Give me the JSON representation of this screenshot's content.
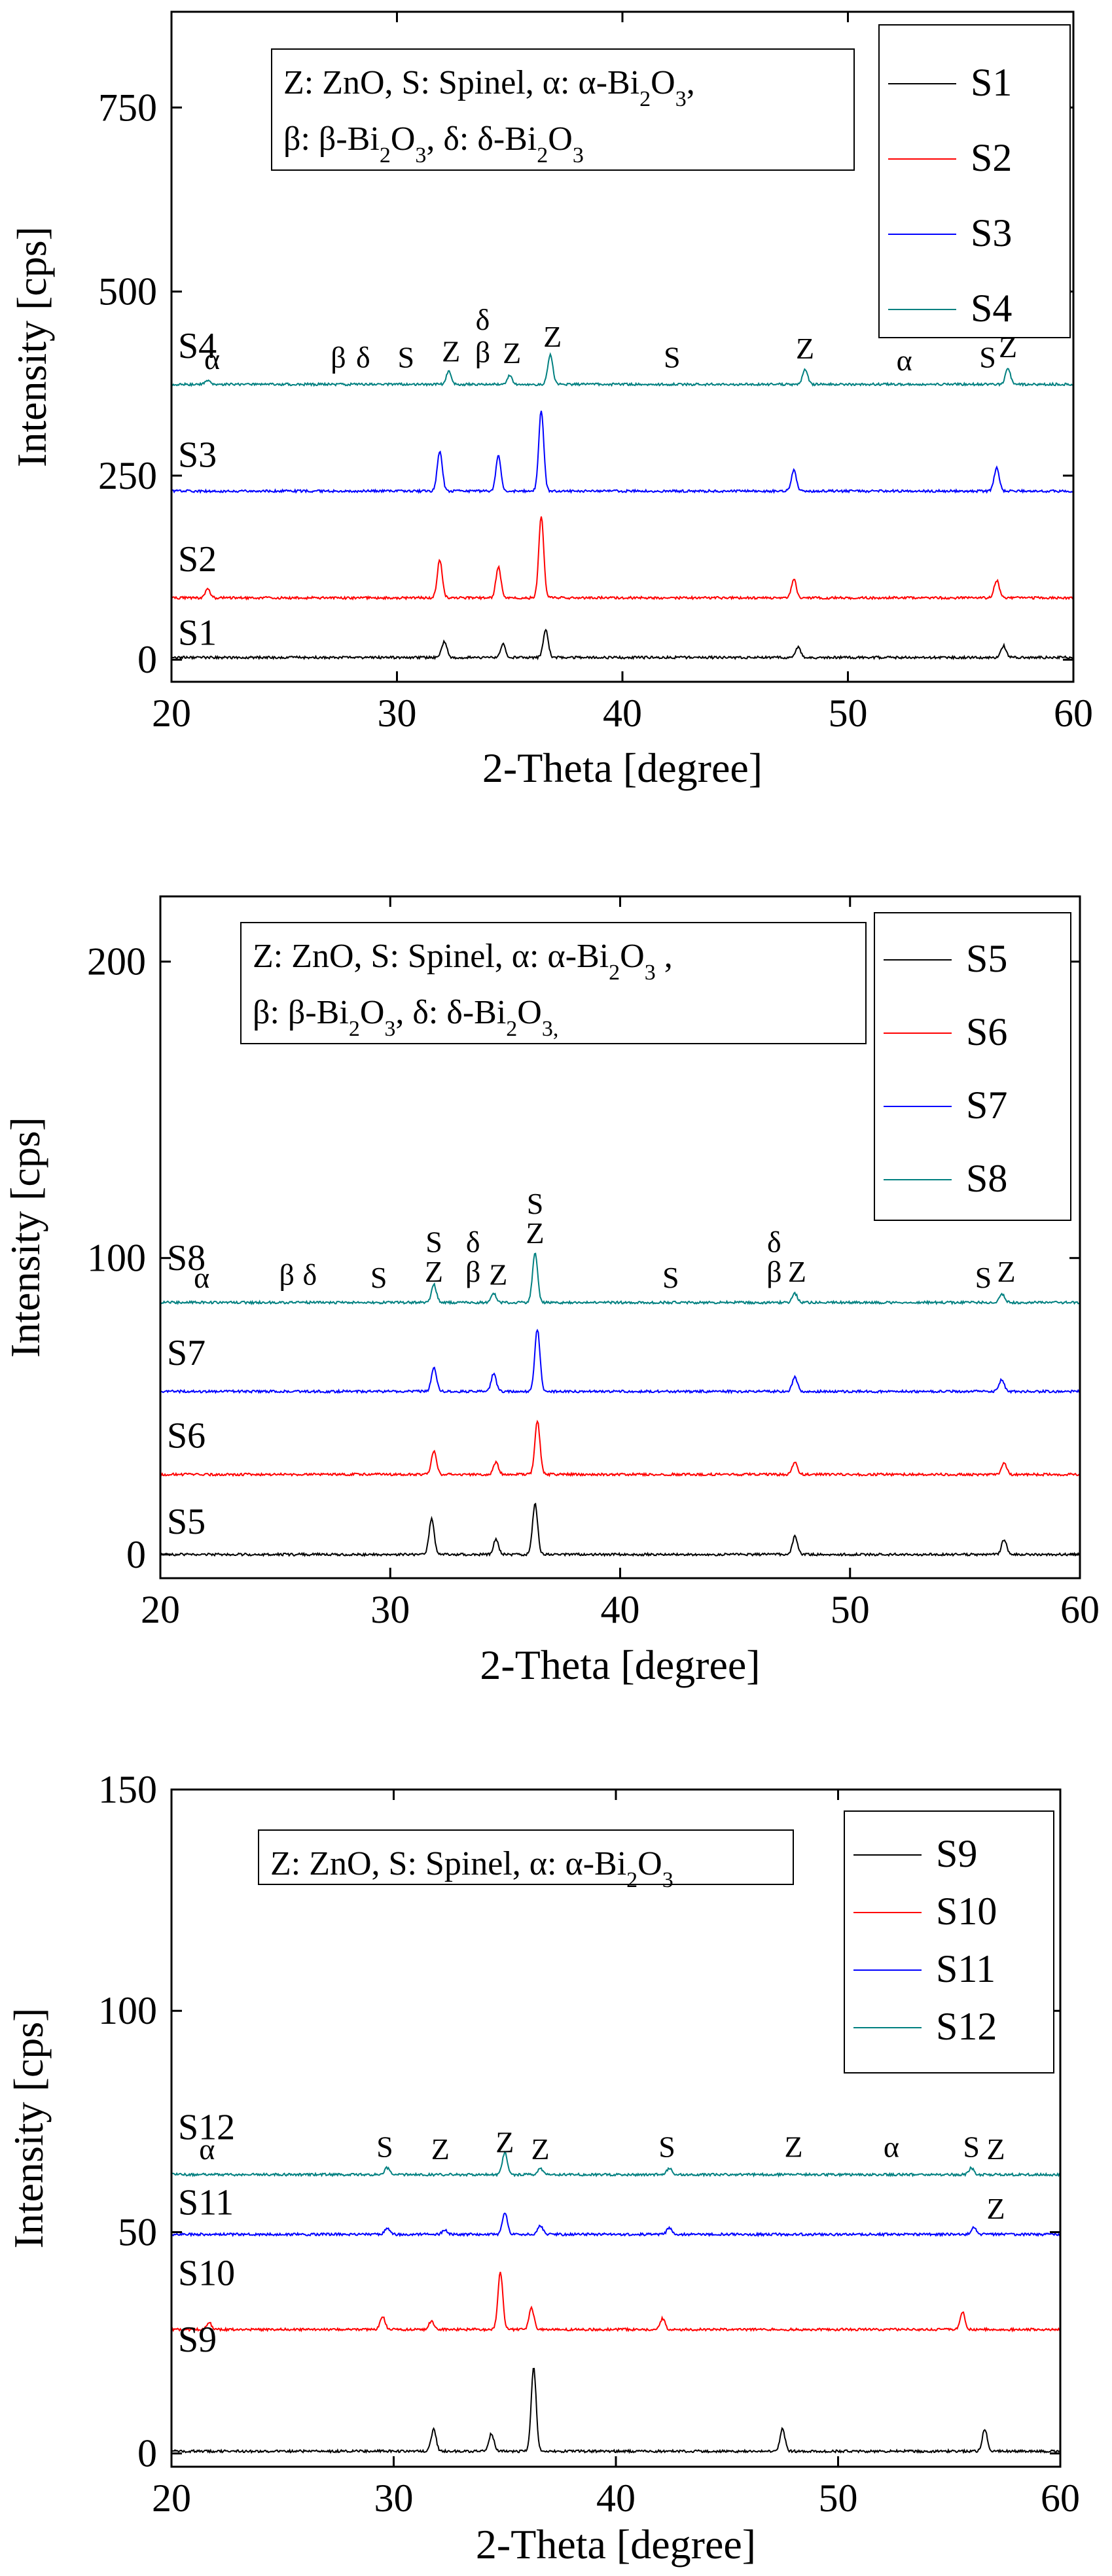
{
  "chart_data": [
    {
      "id": "top",
      "type": "line",
      "xlabel": "2-Theta [degree]",
      "ylabel": "Intensity [cps]",
      "xlim": [
        20,
        60
      ],
      "ylim": [
        -30,
        880
      ],
      "xticks": [
        20,
        30,
        40,
        50,
        60
      ],
      "yticks": [
        0,
        250,
        500,
        750
      ],
      "legend_title_lines": [
        [
          "Z: ZnO, S: Spinel, α: α-Bi",
          "2",
          "O",
          "3",
          ","
        ],
        [
          "β: β-Bi",
          "2",
          "O",
          "3",
          ", δ: δ-Bi",
          "2",
          "O",
          "3",
          ""
        ]
      ],
      "series": [
        {
          "name": "S1",
          "color": "#000000",
          "baseline": 3,
          "peaks": [
            [
              32.1,
              22
            ],
            [
              34.7,
              18
            ],
            [
              36.6,
              38
            ],
            [
              47.8,
              14
            ],
            [
              56.9,
              16
            ]
          ]
        },
        {
          "name": "S2",
          "color": "#ff0000",
          "baseline": 84,
          "peaks": [
            [
              21.6,
              12
            ],
            [
              31.9,
              52
            ],
            [
              34.5,
              42
            ],
            [
              36.4,
              110
            ],
            [
              47.6,
              25
            ],
            [
              56.6,
              24
            ]
          ]
        },
        {
          "name": "S3",
          "color": "#0000ff",
          "baseline": 229,
          "peaks": [
            [
              31.9,
              55
            ],
            [
              34.5,
              48
            ],
            [
              36.4,
              110
            ],
            [
              47.6,
              28
            ],
            [
              56.6,
              32
            ]
          ]
        },
        {
          "name": "S4",
          "color": "#008080",
          "baseline": 374,
          "peaks": [
            [
              21.6,
              6
            ],
            [
              32.3,
              18
            ],
            [
              35.0,
              12
            ],
            [
              36.8,
              40
            ],
            [
              48.1,
              20
            ],
            [
              57.1,
              22
            ]
          ]
        }
      ],
      "series_labels": [
        {
          "text": "S1",
          "y": 20
        },
        {
          "text": "S2",
          "y": 120
        },
        {
          "text": "S3",
          "y": 262
        },
        {
          "text": "S4",
          "y": 410
        }
      ],
      "annotations": [
        {
          "text": "α",
          "x": 21.8,
          "y": 395
        },
        {
          "text": "β",
          "x": 27.4,
          "y": 397
        },
        {
          "text": "δ",
          "x": 28.5,
          "y": 397
        },
        {
          "text": "S",
          "x": 30.4,
          "y": 397
        },
        {
          "text": "Z",
          "x": 32.4,
          "y": 405
        },
        {
          "text": "δ",
          "x": 33.8,
          "y": 448
        },
        {
          "text": "β",
          "x": 33.8,
          "y": 404
        },
        {
          "text": "Z",
          "x": 35.1,
          "y": 403
        },
        {
          "text": "Z",
          "x": 36.9,
          "y": 425
        },
        {
          "text": "S",
          "x": 42.2,
          "y": 397
        },
        {
          "text": "Z",
          "x": 48.1,
          "y": 409
        },
        {
          "text": "α",
          "x": 52.5,
          "y": 393
        },
        {
          "text": "S",
          "x": 56.2,
          "y": 397
        },
        {
          "text": "Z",
          "x": 57.1,
          "y": 411
        }
      ]
    },
    {
      "id": "middle",
      "type": "line",
      "xlabel": "2-Theta [degree]",
      "ylabel": "Intensity [cps]",
      "xlim": [
        20,
        60
      ],
      "ylim": [
        -8,
        222
      ],
      "xticks": [
        20,
        30,
        40,
        50,
        60
      ],
      "yticks": [
        0,
        100,
        200
      ],
      "legend_title_lines": [
        [
          "Z: ZnO, S: Spinel, α: α-Bi",
          "2",
          "O",
          "3",
          " ,"
        ],
        [
          "β: β-Bi",
          "2",
          "O",
          "3",
          ", δ: δ-Bi",
          "2",
          "O",
          "3,",
          ""
        ]
      ],
      "series": [
        {
          "name": "S5",
          "color": "#000000",
          "baseline": 0,
          "peaks": [
            [
              31.8,
              12
            ],
            [
              34.6,
              5
            ],
            [
              36.3,
              17
            ],
            [
              47.6,
              6
            ],
            [
              56.7,
              5
            ]
          ]
        },
        {
          "name": "S6",
          "color": "#ff0000",
          "baseline": 27,
          "peaks": [
            [
              31.9,
              8
            ],
            [
              34.6,
              4
            ],
            [
              36.4,
              18
            ],
            [
              47.6,
              4
            ],
            [
              56.7,
              4
            ]
          ]
        },
        {
          "name": "S7",
          "color": "#0000ff",
          "baseline": 55,
          "peaks": [
            [
              31.9,
              8
            ],
            [
              34.5,
              6
            ],
            [
              36.4,
              21
            ],
            [
              47.6,
              5
            ],
            [
              56.6,
              4
            ]
          ]
        },
        {
          "name": "S8",
          "color": "#008080",
          "baseline": 85,
          "peaks": [
            [
              31.9,
              6
            ],
            [
              34.5,
              3
            ],
            [
              36.3,
              17
            ],
            [
              47.6,
              3
            ],
            [
              56.6,
              3
            ]
          ]
        }
      ],
      "series_labels": [
        {
          "text": "S5",
          "y": 7
        },
        {
          "text": "S6",
          "y": 36
        },
        {
          "text": "S7",
          "y": 64
        },
        {
          "text": "S8",
          "y": 96
        }
      ],
      "annotations": [
        {
          "text": "α",
          "x": 21.8,
          "y": 90
        },
        {
          "text": "β",
          "x": 25.5,
          "y": 91
        },
        {
          "text": "δ",
          "x": 26.5,
          "y": 91
        },
        {
          "text": "S",
          "x": 29.5,
          "y": 90
        },
        {
          "text": "Z",
          "x": 31.9,
          "y": 92
        },
        {
          "text": "S",
          "x": 31.9,
          "y": 102
        },
        {
          "text": "β",
          "x": 33.6,
          "y": 92
        },
        {
          "text": "δ",
          "x": 33.6,
          "y": 102
        },
        {
          "text": "Z",
          "x": 34.7,
          "y": 91
        },
        {
          "text": "Z",
          "x": 36.3,
          "y": 105
        },
        {
          "text": "S",
          "x": 36.3,
          "y": 115
        },
        {
          "text": "S",
          "x": 42.2,
          "y": 90
        },
        {
          "text": "β",
          "x": 46.7,
          "y": 92
        },
        {
          "text": "δ",
          "x": 46.7,
          "y": 102
        },
        {
          "text": "Z",
          "x": 47.7,
          "y": 92
        },
        {
          "text": "S",
          "x": 55.8,
          "y": 90
        },
        {
          "text": "Z",
          "x": 56.8,
          "y": 92
        }
      ]
    },
    {
      "id": "bottom",
      "type": "line",
      "xlabel": "2-Theta [degree]",
      "ylabel": "Intensity [cps]",
      "xlim": [
        20,
        60
      ],
      "ylim": [
        -3,
        150
      ],
      "xticks": [
        20,
        30,
        40,
        50,
        60
      ],
      "yticks": [
        0,
        50,
        100,
        150
      ],
      "legend_title_lines": [
        [
          "Z: ZnO, S: Spinel, α: α-Bi",
          "2",
          "O",
          "3",
          ""
        ]
      ],
      "series": [
        {
          "name": "S9",
          "color": "#000000",
          "baseline": 0.5,
          "peaks": [
            [
              31.8,
              5
            ],
            [
              34.4,
              4
            ],
            [
              36.3,
              19
            ],
            [
              47.5,
              5
            ],
            [
              56.6,
              5
            ]
          ]
        },
        {
          "name": "S10",
          "color": "#ff0000",
          "baseline": 28,
          "peaks": [
            [
              21.7,
              1.5
            ],
            [
              29.5,
              3
            ],
            [
              31.7,
              2
            ],
            [
              34.8,
              13
            ],
            [
              36.2,
              5
            ],
            [
              42.1,
              2.5
            ],
            [
              55.6,
              4
            ]
          ]
        },
        {
          "name": "S11",
          "color": "#0000ff",
          "baseline": 49.5,
          "peaks": [
            [
              29.7,
              1.5
            ],
            [
              32.3,
              1
            ],
            [
              35.0,
              5
            ],
            [
              36.6,
              2
            ],
            [
              42.4,
              1.5
            ],
            [
              56.1,
              1.5
            ]
          ]
        },
        {
          "name": "S12",
          "color": "#008080",
          "baseline": 63,
          "peaks": [
            [
              29.7,
              1.5
            ],
            [
              35.0,
              5
            ],
            [
              36.6,
              1.5
            ],
            [
              42.4,
              1.5
            ],
            [
              56.0,
              1.5
            ]
          ]
        }
      ],
      "series_labels": [
        {
          "text": "S9",
          "y": 23
        },
        {
          "text": "S10",
          "y": 38
        },
        {
          "text": "S11",
          "y": 54
        },
        {
          "text": "S12",
          "y": 71
        }
      ],
      "annotations": [
        {
          "text": "α",
          "x": 21.6,
          "y": 66.5
        },
        {
          "text": "S",
          "x": 29.6,
          "y": 67
        },
        {
          "text": "Z",
          "x": 32.1,
          "y": 66.5
        },
        {
          "text": "Z",
          "x": 35.0,
          "y": 68
        },
        {
          "text": "Z",
          "x": 36.6,
          "y": 66.5
        },
        {
          "text": "S",
          "x": 42.3,
          "y": 67
        },
        {
          "text": "Z",
          "x": 48.0,
          "y": 67
        },
        {
          "text": "α",
          "x": 52.4,
          "y": 67
        },
        {
          "text": "S",
          "x": 56.0,
          "y": 67
        },
        {
          "text": "Z",
          "x": 57.1,
          "y": 66.5
        },
        {
          "text": "Z",
          "x": 57.1,
          "y": 53
        }
      ]
    }
  ]
}
